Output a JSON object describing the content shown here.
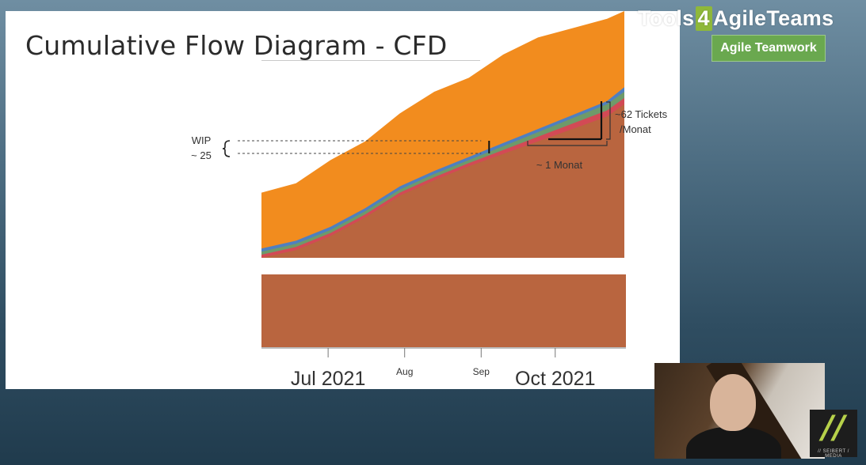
{
  "slide": {
    "title": "Cumulative Flow Diagram - CFD"
  },
  "branding": {
    "brand_prefix": "Tools",
    "brand_four": "4",
    "brand_suffix": "AgileTeams",
    "badge": "Agile Teamwork",
    "logo_mark": "//",
    "logo_text": "// SEIBERT / MEDIA",
    "colors": {
      "badge": "#6aa84f",
      "four": "#8fb83a",
      "logo": "#b7d14a"
    }
  },
  "chart_data": {
    "type": "area",
    "title": "",
    "xlabel": "",
    "ylabel": "",
    "x_ticks": [
      {
        "label": "Jul 2021",
        "date": "2021-07-01",
        "size": "large"
      },
      {
        "label": "Aug",
        "date": "2021-08-01",
        "size": "small"
      },
      {
        "label": "Sep",
        "date": "2021-09-01",
        "size": "small"
      },
      {
        "label": "Oct 2021",
        "date": "2021-10-01",
        "size": "large"
      }
    ],
    "x_range": [
      "2021-06-04",
      "2021-10-29"
    ],
    "x": [
      "2021-06-04",
      "2021-06-18",
      "2021-07-02",
      "2021-07-16",
      "2021-07-30",
      "2021-08-13",
      "2021-08-27",
      "2021-09-10",
      "2021-09-24",
      "2021-10-08",
      "2021-10-22",
      "2021-10-29"
    ],
    "series": [
      {
        "values": [
          0,
          10,
          28,
          52,
          80,
          100,
          118,
          134,
          150,
          166,
          182,
          198
        ],
        "color": "#b9653f"
      },
      {
        "values": [
          4,
          14,
          32,
          56,
          84,
          104,
          122,
          139,
          156,
          173,
          190,
          206
        ],
        "color": "#d24a55"
      },
      {
        "values": [
          8,
          18,
          36,
          60,
          88,
          108,
          126,
          144,
          162,
          180,
          198,
          214
        ],
        "color": "#6e9a6a"
      },
      {
        "values": [
          12,
          22,
          40,
          64,
          92,
          112,
          130,
          148,
          166,
          184,
          202,
          220
        ],
        "color": "#4f7fc0"
      },
      {
        "values": [
          84,
          96,
          126,
          150,
          186,
          214,
          232,
          262,
          284,
          296,
          308,
          318
        ],
        "color": "#f28c1e"
      }
    ],
    "annotations": {
      "wip_label_line1": "WIP",
      "wip_label_line2": "~ 25",
      "wip_date": "2021-09-01",
      "throughput_label_line1": "~62 Tickets",
      "throughput_label_line2": "/Monat",
      "month_label": "~ 1 Monat"
    },
    "lower_band_color": "#b9653f",
    "grid": false,
    "legend": "none"
  }
}
